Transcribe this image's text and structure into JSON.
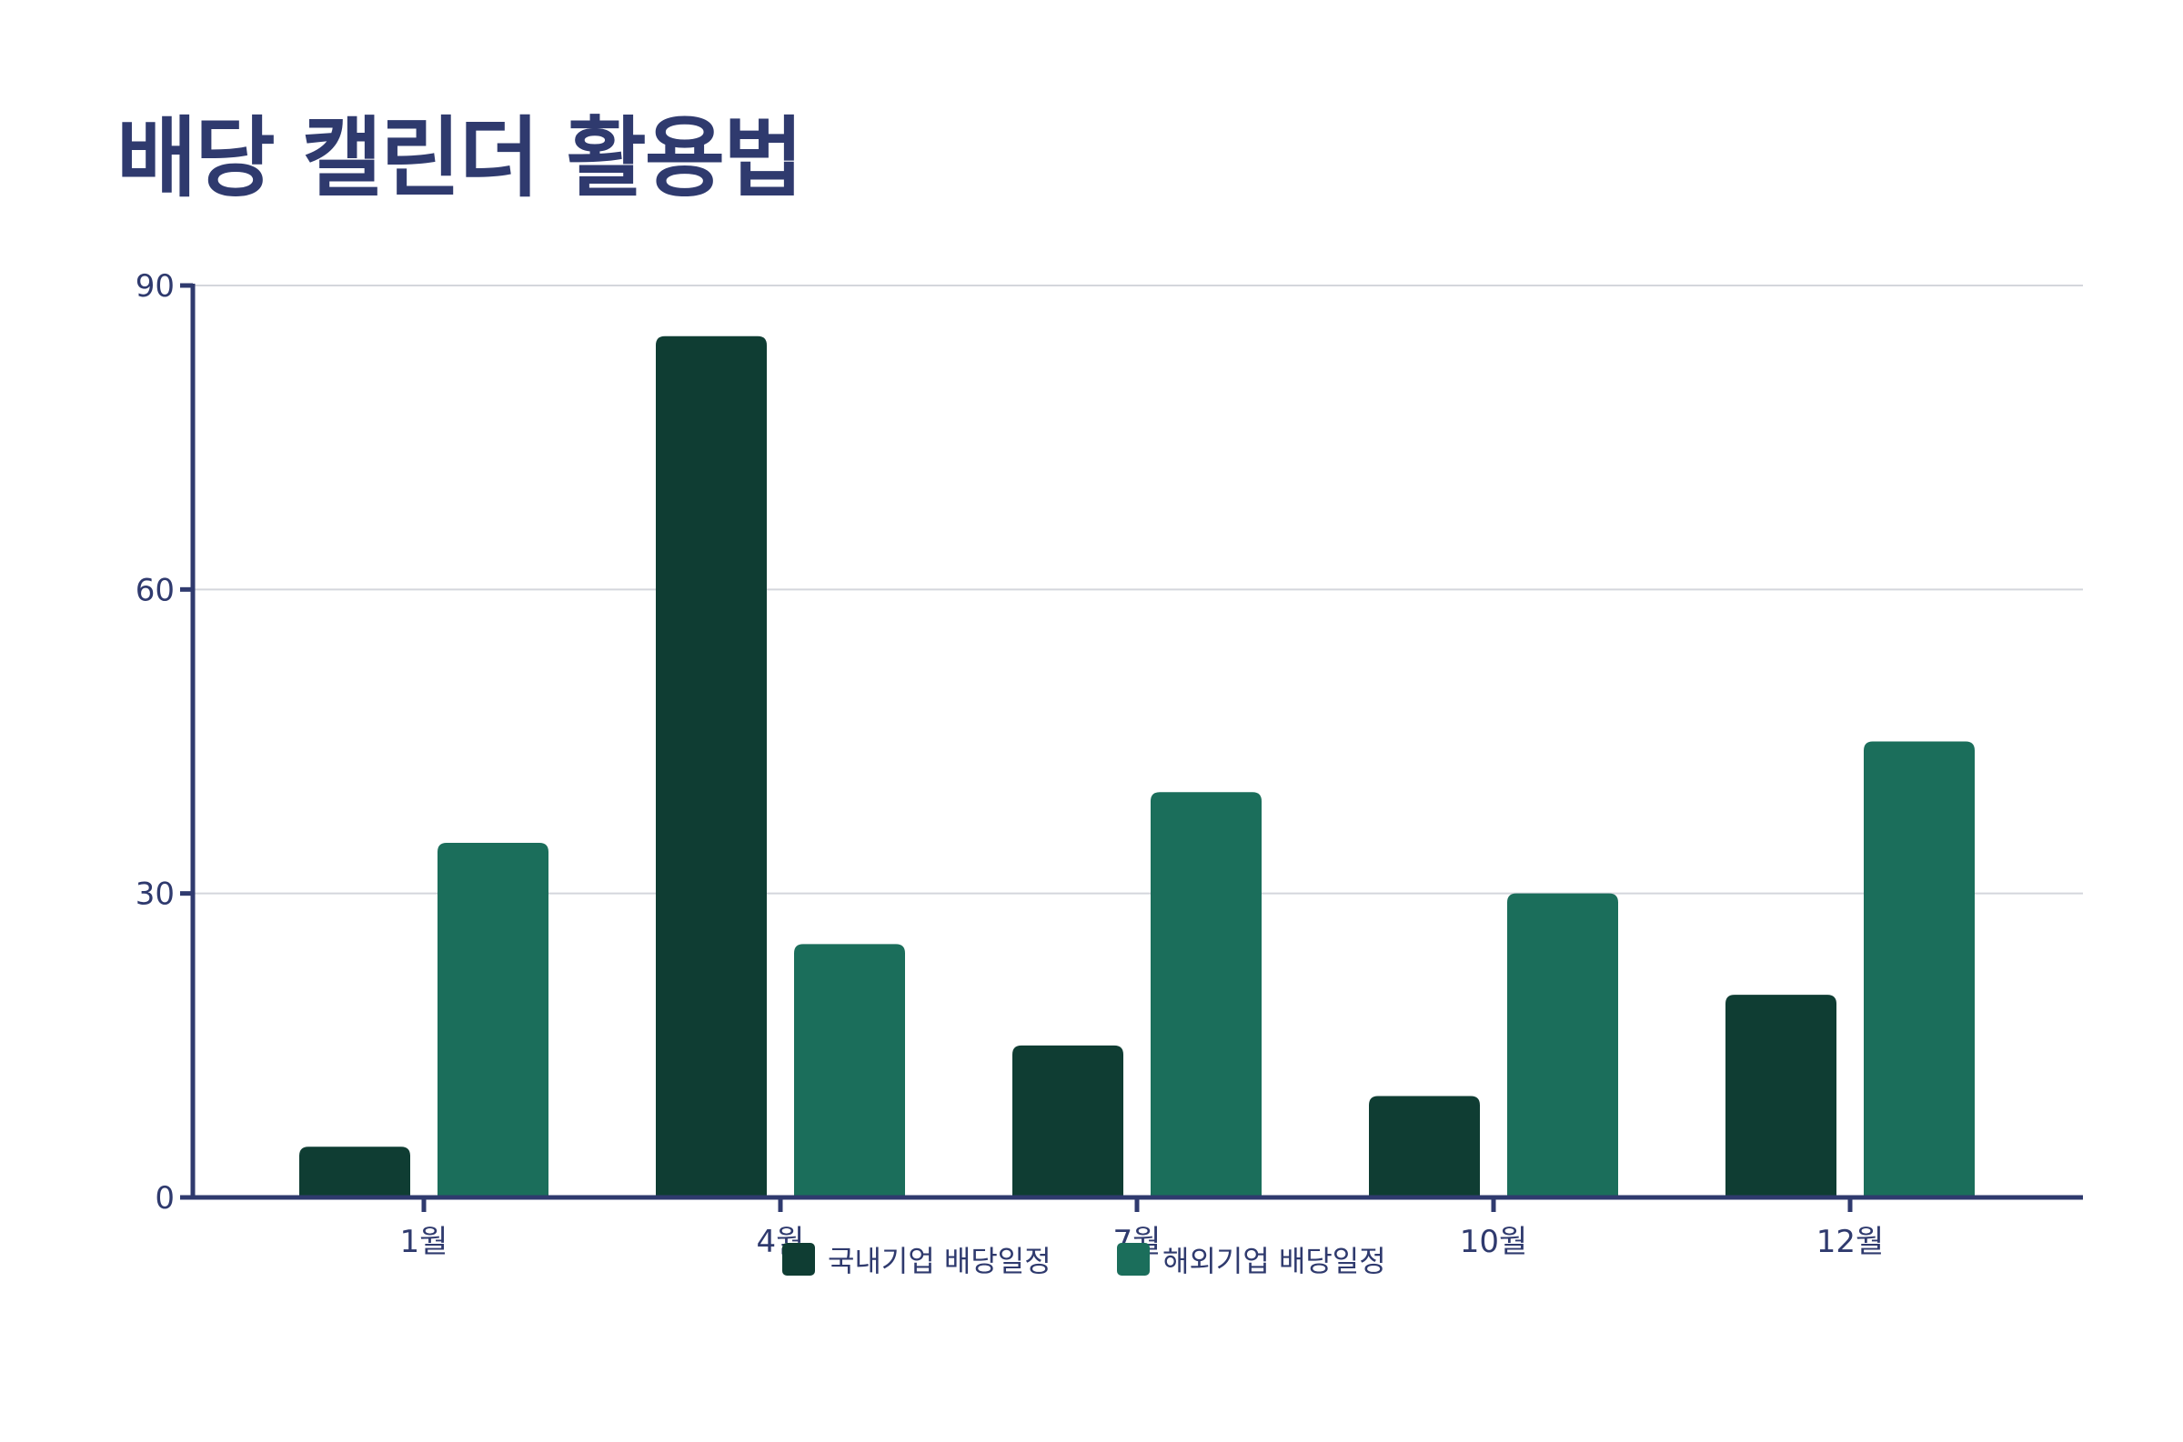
{
  "title": "배당 캘린더 활용법",
  "chart_data": {
    "type": "bar",
    "title": "배당 캘린더 활용법",
    "categories": [
      "1월",
      "4월",
      "7월",
      "10월",
      "12월"
    ],
    "series": [
      {
        "name": "국내기업 배당일정",
        "color": "#0f3d33",
        "values": [
          5,
          85,
          15,
          10,
          20
        ]
      },
      {
        "name": "해외기업 배당일정",
        "color": "#1b6e5b",
        "values": [
          35,
          25,
          40,
          30,
          45
        ]
      }
    ],
    "y_ticks": [
      0,
      30,
      60,
      90
    ],
    "ylim": [
      0,
      90
    ],
    "xlabel": "",
    "ylabel": "",
    "grid": true,
    "legend_position": "bottom-center"
  }
}
